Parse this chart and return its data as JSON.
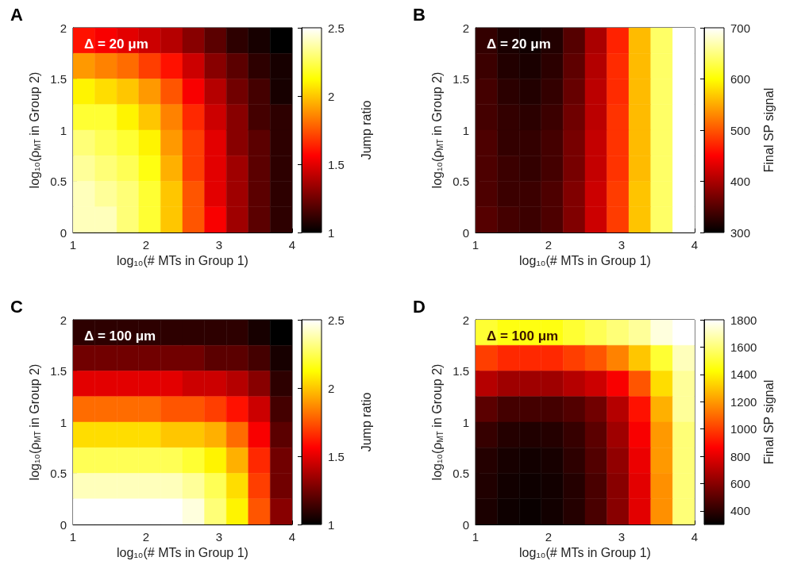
{
  "chart_data": [
    {
      "type": "heatmap",
      "title": "A",
      "xlabel": "log₁₀(# MTs in Group 1)",
      "ylabel": "log₁₀(ρ$_{MT}$ in Group 2)",
      "clabel": "Jump ratio",
      "annotations": [
        "Δ = 20 μm"
      ],
      "x": [
        1.15,
        1.45,
        1.75,
        2.05,
        2.35,
        2.65,
        2.95,
        3.25,
        3.55,
        3.85
      ],
      "xlim": [
        1,
        4
      ],
      "xticks": [
        1,
        2,
        3,
        4
      ],
      "ylim": [
        0,
        2
      ],
      "yticks": [
        0,
        0.5,
        1,
        1.5,
        2
      ],
      "clim": [
        1,
        2.5
      ],
      "cticks": [
        1,
        1.5,
        2,
        2.5
      ],
      "cells": [
        [
          1.6,
          1.55,
          1.5,
          1.45,
          1.4,
          1.3,
          1.2,
          1.1,
          1.05,
          1.0
        ],
        [
          1.9,
          1.85,
          1.8,
          1.7,
          1.6,
          1.45,
          1.3,
          1.2,
          1.1,
          1.05
        ],
        [
          2.1,
          2.05,
          2.0,
          1.9,
          1.75,
          1.55,
          1.4,
          1.25,
          1.15,
          1.05
        ],
        [
          2.2,
          2.2,
          2.1,
          2.0,
          1.85,
          1.65,
          1.45,
          1.3,
          1.15,
          1.1
        ],
        [
          2.3,
          2.25,
          2.2,
          2.1,
          1.9,
          1.7,
          1.5,
          1.3,
          1.2,
          1.1
        ],
        [
          2.35,
          2.3,
          2.25,
          2.15,
          1.95,
          1.7,
          1.5,
          1.35,
          1.2,
          1.1
        ],
        [
          2.4,
          2.35,
          2.3,
          2.2,
          2.0,
          1.75,
          1.5,
          1.35,
          1.2,
          1.1
        ],
        [
          2.4,
          2.4,
          2.3,
          2.2,
          2.0,
          1.75,
          1.55,
          1.35,
          1.2,
          1.1
        ]
      ]
    },
    {
      "type": "heatmap",
      "title": "B",
      "xlabel": "log₁₀(# MTs in Group 1)",
      "ylabel": "log₁₀(ρ$_{MT}$ in Group 2)",
      "clabel": "Final SP signal",
      "annotations": [
        "Δ = 20 μm"
      ],
      "x": [
        1.15,
        1.45,
        1.75,
        2.05,
        2.35,
        2.65,
        2.95,
        3.25,
        3.55,
        3.85
      ],
      "xlim": [
        1,
        4
      ],
      "xticks": [
        1,
        2,
        3,
        4
      ],
      "ylim": [
        0,
        2
      ],
      "yticks": [
        0,
        0.5,
        1,
        1.5,
        2
      ],
      "clim": [
        300,
        700
      ],
      "cticks": [
        300,
        400,
        500,
        600,
        700
      ],
      "cells": [
        [
          330,
          315,
          310,
          320,
          350,
          400,
          470,
          560,
          640,
          700
        ],
        [
          335,
          320,
          315,
          325,
          355,
          405,
          475,
          560,
          640,
          700
        ],
        [
          340,
          325,
          320,
          330,
          360,
          410,
          475,
          560,
          640,
          700
        ],
        [
          340,
          330,
          325,
          335,
          365,
          410,
          480,
          560,
          640,
          700
        ],
        [
          345,
          330,
          330,
          340,
          370,
          415,
          480,
          560,
          640,
          700
        ],
        [
          345,
          335,
          330,
          340,
          370,
          415,
          480,
          560,
          640,
          700
        ],
        [
          345,
          335,
          335,
          345,
          375,
          420,
          485,
          565,
          640,
          700
        ],
        [
          350,
          340,
          335,
          345,
          375,
          420,
          485,
          565,
          640,
          700
        ]
      ]
    },
    {
      "type": "heatmap",
      "title": "C",
      "xlabel": "log₁₀(# MTs in Group 1)",
      "ylabel": "log₁₀(ρ$_{MT}$ in Group 2)",
      "clabel": "Jump ratio",
      "annotations": [
        "Δ = 100 μm"
      ],
      "x": [
        1.15,
        1.45,
        1.75,
        2.05,
        2.35,
        2.65,
        2.95,
        3.25,
        3.55,
        3.85
      ],
      "xlim": [
        1,
        4
      ],
      "xticks": [
        1,
        2,
        3,
        4
      ],
      "ylim": [
        0,
        2
      ],
      "yticks": [
        0,
        0.5,
        1,
        1.5,
        2
      ],
      "clim": [
        1,
        2.5
      ],
      "cticks": [
        1,
        1.5,
        2,
        2.5
      ],
      "cells": [
        [
          1.1,
          1.1,
          1.1,
          1.1,
          1.1,
          1.1,
          1.1,
          1.1,
          1.05,
          1.0
        ],
        [
          1.25,
          1.25,
          1.25,
          1.25,
          1.25,
          1.25,
          1.2,
          1.2,
          1.15,
          1.05
        ],
        [
          1.5,
          1.5,
          1.5,
          1.5,
          1.5,
          1.45,
          1.45,
          1.4,
          1.3,
          1.1
        ],
        [
          1.8,
          1.8,
          1.8,
          1.8,
          1.75,
          1.75,
          1.7,
          1.6,
          1.45,
          1.15
        ],
        [
          2.05,
          2.05,
          2.05,
          2.05,
          2.0,
          2.0,
          1.95,
          1.8,
          1.55,
          1.2
        ],
        [
          2.25,
          2.25,
          2.25,
          2.25,
          2.25,
          2.2,
          2.1,
          1.95,
          1.65,
          1.25
        ],
        [
          2.4,
          2.4,
          2.4,
          2.4,
          2.4,
          2.35,
          2.25,
          2.05,
          1.7,
          1.25
        ],
        [
          2.5,
          2.5,
          2.5,
          2.5,
          2.5,
          2.45,
          2.3,
          2.1,
          1.75,
          1.3
        ]
      ]
    },
    {
      "type": "heatmap",
      "title": "D",
      "xlabel": "log₁₀(# MTs in Group 1)",
      "ylabel": "log₁₀(ρ$_{MT}$ in Group 2)",
      "clabel": "Final SP signal",
      "annotations": [
        "Δ = 100 μm"
      ],
      "x": [
        1.15,
        1.45,
        1.75,
        2.05,
        2.35,
        2.65,
        2.95,
        3.25,
        3.55,
        3.85
      ],
      "xlim": [
        1,
        4
      ],
      "xticks": [
        1,
        2,
        3,
        4
      ],
      "ylim": [
        0,
        2
      ],
      "yticks": [
        0,
        0.5,
        1,
        1.5,
        2
      ],
      "clim": [
        300,
        1800
      ],
      "cticks": [
        400,
        600,
        800,
        1000,
        1200,
        1400,
        1600,
        1800
      ],
      "cells": [
        [
          1500,
          1450,
          1450,
          1450,
          1500,
          1550,
          1600,
          1650,
          1750,
          1800
        ],
        [
          1000,
          950,
          950,
          950,
          1000,
          1050,
          1150,
          1300,
          1500,
          1700
        ],
        [
          700,
          650,
          650,
          650,
          700,
          750,
          850,
          1050,
          1350,
          1650
        ],
        [
          500,
          450,
          450,
          450,
          480,
          550,
          700,
          900,
          1250,
          1650
        ],
        [
          420,
          380,
          370,
          380,
          420,
          500,
          650,
          850,
          1200,
          1600
        ],
        [
          380,
          350,
          340,
          350,
          400,
          480,
          620,
          820,
          1200,
          1600
        ],
        [
          370,
          340,
          330,
          340,
          380,
          460,
          600,
          800,
          1180,
          1600
        ],
        [
          360,
          330,
          320,
          340,
          380,
          460,
          600,
          800,
          1180,
          1600
        ]
      ]
    }
  ]
}
